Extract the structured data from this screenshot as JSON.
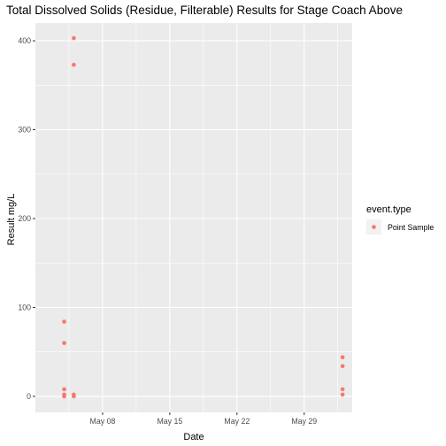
{
  "chart_data": {
    "type": "scatter",
    "title": "Total Dissolved Solids (Residue, Filterable) Results for Stage Coach Above",
    "xlabel": "Date",
    "ylabel": "Result mg/L",
    "x_axis_type": "date",
    "xlim": [
      "2019-05-01",
      "2019-06-03"
    ],
    "ylim": [
      -18,
      420
    ],
    "x_ticks": [
      {
        "value": "2019-05-08",
        "label": "May 08"
      },
      {
        "value": "2019-05-15",
        "label": "May 15"
      },
      {
        "value": "2019-05-22",
        "label": "May 22"
      },
      {
        "value": "2019-05-29",
        "label": "May 29"
      }
    ],
    "y_ticks": [
      0,
      100,
      200,
      300,
      400
    ],
    "grid": true,
    "legend": {
      "title": "event.type",
      "position": "right",
      "entries": [
        {
          "label": "Point Sample",
          "color": "#F8766D"
        }
      ]
    },
    "series": [
      {
        "name": "Point Sample",
        "color": "#F8766D",
        "points": [
          {
            "x": "2019-05-04",
            "y": 84
          },
          {
            "x": "2019-05-04",
            "y": 60
          },
          {
            "x": "2019-05-04",
            "y": 8
          },
          {
            "x": "2019-05-04",
            "y": 2
          },
          {
            "x": "2019-05-04",
            "y": 0
          },
          {
            "x": "2019-05-05",
            "y": 403
          },
          {
            "x": "2019-05-05",
            "y": 373
          },
          {
            "x": "2019-05-05",
            "y": 2
          },
          {
            "x": "2019-05-05",
            "y": 0
          },
          {
            "x": "2019-06-02",
            "y": 44
          },
          {
            "x": "2019-06-02",
            "y": 34
          },
          {
            "x": "2019-06-02",
            "y": 8
          },
          {
            "x": "2019-06-02",
            "y": 2
          }
        ]
      }
    ]
  }
}
